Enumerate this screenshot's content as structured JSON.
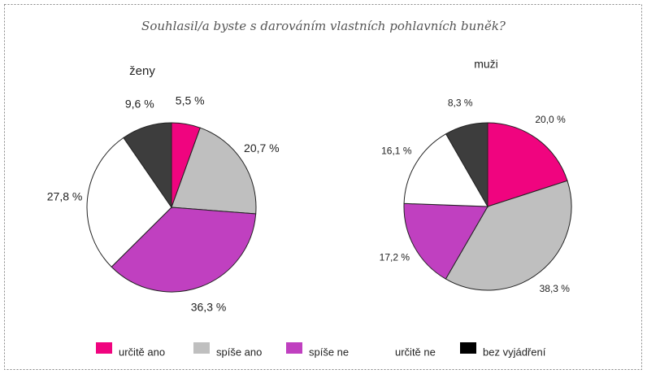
{
  "title": "Souhlasil/a byste s darováním vlastních pohlavních buněk?",
  "chart_data": [
    {
      "type": "pie",
      "title": "ženy",
      "categories": [
        "určitě ano",
        "spíše ano",
        "spíše ne",
        "určitě ne",
        "bez vyjádření"
      ],
      "values": [
        5.5,
        20.7,
        36.3,
        27.8,
        9.6
      ],
      "value_labels": [
        "5,5 %",
        "20,7 %",
        "36,3 %",
        "27,8 %",
        "9,6 %"
      ],
      "colors": [
        "#f0047f",
        "#bfbfbf",
        "#c040c0",
        "#ffffff",
        "#3d3d3d"
      ]
    },
    {
      "type": "pie",
      "title": "muži",
      "categories": [
        "určitě ano",
        "spíše ano",
        "spíše ne",
        "určitě ne",
        "bez vyjádření"
      ],
      "values": [
        20.0,
        38.3,
        17.2,
        16.1,
        8.3
      ],
      "value_labels": [
        "20,0 %",
        "38,3 %",
        "17,2 %",
        "16,1 %",
        "8,3 %"
      ],
      "colors": [
        "#f0047f",
        "#bfbfbf",
        "#c040c0",
        "#ffffff",
        "#3d3d3d"
      ]
    }
  ]
}
